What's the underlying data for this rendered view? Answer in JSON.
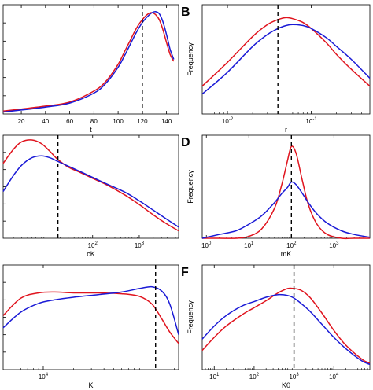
{
  "colors": {
    "series_a": "#e0141e",
    "series_b": "#1a1ad6",
    "reference": "#000000",
    "axis": "#000000"
  },
  "chart_data": [
    {
      "type": "line",
      "panel_letter": "",
      "xlabel": "t",
      "ylabel": "",
      "xscale": "linear",
      "xlim": [
        5,
        150
      ],
      "xticks": [
        20,
        40,
        60,
        80,
        100,
        120,
        140
      ],
      "xtick_labels": [
        "20",
        "40",
        "60",
        "80",
        "100",
        "120",
        "140"
      ],
      "ylim": [
        0,
        1.1
      ],
      "ytick_count": 5,
      "reference_x": 120,
      "x": [
        5,
        20,
        40,
        60,
        80,
        90,
        100,
        105,
        110,
        115,
        120,
        125,
        128,
        131,
        134,
        137,
        140,
        143,
        146
      ],
      "series": [
        {
          "color_key": "series_a",
          "values": [
            0.03,
            0.05,
            0.08,
            0.12,
            0.23,
            0.33,
            0.5,
            0.62,
            0.74,
            0.86,
            0.95,
            1.01,
            1.02,
            1.0,
            0.95,
            0.85,
            0.72,
            0.6,
            0.53
          ]
        },
        {
          "color_key": "series_b",
          "values": [
            0.02,
            0.04,
            0.07,
            0.11,
            0.21,
            0.31,
            0.47,
            0.58,
            0.7,
            0.82,
            0.92,
            0.99,
            1.02,
            1.03,
            1.01,
            0.93,
            0.8,
            0.65,
            0.55
          ]
        }
      ]
    },
    {
      "type": "line",
      "panel_letter": "B",
      "xlabel": "r",
      "ylabel": "Frequency",
      "xscale": "log",
      "xlim": [
        0.005,
        0.5
      ],
      "xticks": [
        0.01,
        0.1
      ],
      "xtick_labels": [
        "10^-2",
        "10^-1"
      ],
      "ylim": [
        0,
        1.1
      ],
      "ytick_count": 0,
      "reference_x": 0.04,
      "x": [
        0.005,
        0.01,
        0.02,
        0.03,
        0.04,
        0.05,
        0.06,
        0.08,
        0.1,
        0.15,
        0.2,
        0.3,
        0.5
      ],
      "series": [
        {
          "color_key": "series_a",
          "values": [
            0.28,
            0.52,
            0.78,
            0.9,
            0.95,
            0.97,
            0.96,
            0.92,
            0.86,
            0.72,
            0.6,
            0.45,
            0.28
          ]
        },
        {
          "color_key": "series_b",
          "values": [
            0.2,
            0.42,
            0.68,
            0.8,
            0.86,
            0.89,
            0.9,
            0.89,
            0.86,
            0.77,
            0.68,
            0.55,
            0.36
          ]
        }
      ]
    },
    {
      "type": "line",
      "panel_letter": "",
      "xlabel": "cK",
      "ylabel": "",
      "xscale": "log",
      "xlim": [
        1.2,
        7000
      ],
      "xticks": [
        100,
        1000
      ],
      "xtick_labels": [
        "10^2",
        "10^3"
      ],
      "ylim": [
        0,
        1.1
      ],
      "ytick_count": 5,
      "reference_x": 18,
      "x": [
        1.2,
        2,
        3,
        5,
        8,
        12,
        18,
        30,
        50,
        100,
        200,
        500,
        1000,
        2000,
        4000,
        7000
      ],
      "series": [
        {
          "color_key": "series_a",
          "values": [
            0.8,
            0.95,
            1.03,
            1.05,
            1.01,
            0.93,
            0.84,
            0.76,
            0.71,
            0.64,
            0.57,
            0.46,
            0.36,
            0.25,
            0.15,
            0.08
          ]
        },
        {
          "color_key": "series_b",
          "values": [
            0.5,
            0.67,
            0.78,
            0.86,
            0.88,
            0.86,
            0.82,
            0.77,
            0.72,
            0.65,
            0.58,
            0.49,
            0.4,
            0.3,
            0.2,
            0.12
          ]
        }
      ]
    },
    {
      "type": "line",
      "panel_letter": "D",
      "xlabel": "mK",
      "ylabel": "Frequency",
      "xscale": "log",
      "xlim": [
        0.8,
        7000
      ],
      "xticks": [
        1,
        10,
        100,
        1000
      ],
      "xtick_labels": [
        "10^0",
        "10^1",
        "10^2",
        "10^3"
      ],
      "ylim": [
        0,
        1.1
      ],
      "ytick_count": 0,
      "reference_x": 100,
      "x": [
        0.8,
        2,
        5,
        10,
        20,
        40,
        60,
        80,
        100,
        130,
        180,
        250,
        400,
        700,
        1500,
        3000,
        7000
      ],
      "series": [
        {
          "color_key": "series_a",
          "values": [
            0.0,
            0.0,
            0.0,
            0.02,
            0.1,
            0.32,
            0.58,
            0.82,
            0.98,
            0.9,
            0.62,
            0.36,
            0.15,
            0.04,
            0.0,
            0.0,
            0.0
          ]
        },
        {
          "color_key": "series_b",
          "values": [
            0.0,
            0.04,
            0.08,
            0.15,
            0.24,
            0.38,
            0.48,
            0.54,
            0.6,
            0.57,
            0.48,
            0.38,
            0.26,
            0.16,
            0.08,
            0.04,
            0.01
          ]
        }
      ]
    },
    {
      "type": "line",
      "panel_letter": "",
      "xlabel": "K",
      "ylabel": "",
      "xscale": "log",
      "xlim": [
        4000,
        220000
      ],
      "xticks": [
        10000
      ],
      "xtick_labels": [
        "10^4"
      ],
      "ylim": [
        0,
        1.2
      ],
      "ytick_count": 5,
      "reference_x": 130000,
      "x": [
        4000,
        6000,
        9000,
        13000,
        20000,
        35000,
        60000,
        90000,
        120000,
        150000,
        180000,
        220000
      ],
      "series": [
        {
          "color_key": "series_a",
          "values": [
            0.62,
            0.82,
            0.88,
            0.89,
            0.88,
            0.88,
            0.87,
            0.84,
            0.75,
            0.58,
            0.43,
            0.3
          ]
        },
        {
          "color_key": "series_b",
          "values": [
            0.48,
            0.66,
            0.76,
            0.8,
            0.83,
            0.86,
            0.89,
            0.93,
            0.95,
            0.9,
            0.75,
            0.4
          ]
        }
      ]
    },
    {
      "type": "line",
      "panel_letter": "F",
      "xlabel": "K0",
      "ylabel": "Frequency",
      "xscale": "log",
      "xlim": [
        5,
        80000
      ],
      "xticks": [
        10,
        100,
        1000,
        10000
      ],
      "xtick_labels": [
        "10^1",
        "10^2",
        "10^3",
        "10^4"
      ],
      "ylim": [
        0,
        1.2
      ],
      "ytick_count": 0,
      "reference_x": 1000,
      "x": [
        5,
        10,
        20,
        50,
        100,
        200,
        400,
        700,
        1000,
        1500,
        2500,
        5000,
        10000,
        20000,
        50000,
        80000
      ],
      "series": [
        {
          "color_key": "series_a",
          "values": [
            0.22,
            0.37,
            0.5,
            0.63,
            0.71,
            0.79,
            0.88,
            0.93,
            0.93,
            0.91,
            0.83,
            0.65,
            0.45,
            0.28,
            0.12,
            0.07
          ]
        },
        {
          "color_key": "series_b",
          "values": [
            0.35,
            0.5,
            0.62,
            0.73,
            0.78,
            0.83,
            0.86,
            0.85,
            0.82,
            0.76,
            0.67,
            0.52,
            0.37,
            0.24,
            0.1,
            0.06
          ]
        }
      ]
    }
  ]
}
